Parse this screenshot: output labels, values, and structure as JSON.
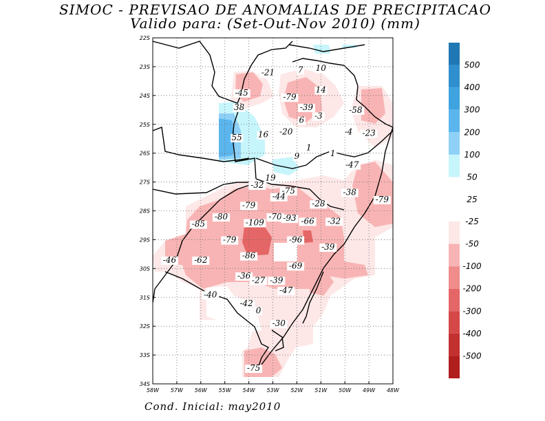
{
  "title": "SIMOC - PREVISAO DE ANOMALIAS DE PRECIPITACAO",
  "subtitle": "Valido para: (Set-Out-Nov 2010) (mm)",
  "footer": "Cond. Inicial: may2010",
  "axes": {
    "lat_ticks": [
      "22S",
      "23S",
      "24S",
      "25S",
      "26S",
      "27S",
      "28S",
      "29S",
      "30S",
      "31S",
      "32S",
      "33S",
      "34S"
    ],
    "lon_ticks": [
      "58W",
      "57W",
      "56W",
      "55W",
      "54W",
      "53W",
      "52W",
      "51W",
      "50W",
      "49W",
      "48W"
    ]
  },
  "legend": {
    "positive": [
      {
        "label": "500",
        "color": "#1f78b4"
      },
      {
        "label": "400",
        "color": "#2f8fcf"
      },
      {
        "label": "300",
        "color": "#3fa3e0"
      },
      {
        "label": "200",
        "color": "#5bb6ee"
      },
      {
        "label": "100",
        "color": "#8ed0f6"
      },
      {
        "label": "50",
        "color": "#c6f5fb"
      },
      {
        "label": "25",
        "color": "#ffffff"
      }
    ],
    "negative": [
      {
        "label": "-25",
        "color": "#fde7e7"
      },
      {
        "label": "-50",
        "color": "#f8b4b4"
      },
      {
        "label": "-100",
        "color": "#f08c8c"
      },
      {
        "label": "-200",
        "color": "#e56666"
      },
      {
        "label": "-300",
        "color": "#d44848"
      },
      {
        "label": "-400",
        "color": "#c23030"
      },
      {
        "label": "-500",
        "color": "#b01e1e"
      }
    ]
  },
  "map_labels": [
    {
      "text": "-21",
      "lat": 23.3,
      "lon": 53.2
    },
    {
      "text": "7",
      "lat": 23.2,
      "lon": 51.85
    },
    {
      "text": "10",
      "lat": 23.15,
      "lon": 51.0
    },
    {
      "text": "14",
      "lat": 23.9,
      "lon": 51.0
    },
    {
      "text": "-45",
      "lat": 24.0,
      "lon": 54.3
    },
    {
      "text": "-79",
      "lat": 24.15,
      "lon": 52.3
    },
    {
      "text": "38",
      "lat": 24.5,
      "lon": 54.4
    },
    {
      "text": "-39",
      "lat": 24.5,
      "lon": 51.6
    },
    {
      "text": "-58",
      "lat": 24.6,
      "lon": 49.55
    },
    {
      "text": "-3",
      "lat": 24.8,
      "lon": 51.1
    },
    {
      "text": "6",
      "lat": 24.95,
      "lon": 51.8
    },
    {
      "text": "-20",
      "lat": 25.35,
      "lon": 52.45
    },
    {
      "text": "-4",
      "lat": 25.35,
      "lon": 49.85
    },
    {
      "text": "-23",
      "lat": 25.4,
      "lon": 49.0
    },
    {
      "text": "55",
      "lat": 25.55,
      "lon": 54.5
    },
    {
      "text": "16",
      "lat": 25.45,
      "lon": 53.4
    },
    {
      "text": "1",
      "lat": 25.9,
      "lon": 51.5
    },
    {
      "text": "1",
      "lat": 26.1,
      "lon": 50.5
    },
    {
      "text": "9",
      "lat": 26.2,
      "lon": 52.0
    },
    {
      "text": "-47",
      "lat": 26.5,
      "lon": 49.7
    },
    {
      "text": "19",
      "lat": 26.95,
      "lon": 53.1
    },
    {
      "text": "-32",
      "lat": 27.2,
      "lon": 53.65
    },
    {
      "text": "-75",
      "lat": 27.4,
      "lon": 52.35
    },
    {
      "text": "-38",
      "lat": 27.45,
      "lon": 49.8
    },
    {
      "text": "-44",
      "lat": 27.6,
      "lon": 52.75
    },
    {
      "text": "-79",
      "lat": 27.7,
      "lon": 48.45
    },
    {
      "text": "-28",
      "lat": 27.85,
      "lon": 51.1
    },
    {
      "text": "-79",
      "lat": 27.9,
      "lon": 54.0
    },
    {
      "text": "-80",
      "lat": 28.3,
      "lon": 55.15
    },
    {
      "text": "-70",
      "lat": 28.3,
      "lon": 52.9
    },
    {
      "text": "-93",
      "lat": 28.35,
      "lon": 52.3
    },
    {
      "text": "-66",
      "lat": 28.45,
      "lon": 51.55
    },
    {
      "text": "-32",
      "lat": 28.45,
      "lon": 50.45
    },
    {
      "text": "-85",
      "lat": 28.55,
      "lon": 56.1
    },
    {
      "text": "-109",
      "lat": 28.5,
      "lon": 53.75
    },
    {
      "text": "-79",
      "lat": 29.1,
      "lon": 54.8
    },
    {
      "text": "-96",
      "lat": 29.1,
      "lon": 52.05
    },
    {
      "text": "-39",
      "lat": 29.35,
      "lon": 50.7
    },
    {
      "text": "-86",
      "lat": 29.65,
      "lon": 54.0
    },
    {
      "text": "-46",
      "lat": 29.8,
      "lon": 57.3
    },
    {
      "text": "-62",
      "lat": 29.8,
      "lon": 56.0
    },
    {
      "text": "-69",
      "lat": 30.0,
      "lon": 52.05
    },
    {
      "text": "-36",
      "lat": 30.35,
      "lon": 54.2
    },
    {
      "text": "-27",
      "lat": 30.5,
      "lon": 53.6
    },
    {
      "text": "-39",
      "lat": 30.5,
      "lon": 52.85
    },
    {
      "text": "-47",
      "lat": 30.85,
      "lon": 52.45
    },
    {
      "text": "-40",
      "lat": 31.0,
      "lon": 55.6
    },
    {
      "text": "-42",
      "lat": 31.3,
      "lon": 54.1
    },
    {
      "text": "0",
      "lat": 31.55,
      "lon": 53.6
    },
    {
      "text": "-30",
      "lat": 32.0,
      "lon": 52.75
    },
    {
      "text": "-75",
      "lat": 33.55,
      "lon": 53.8
    }
  ]
}
